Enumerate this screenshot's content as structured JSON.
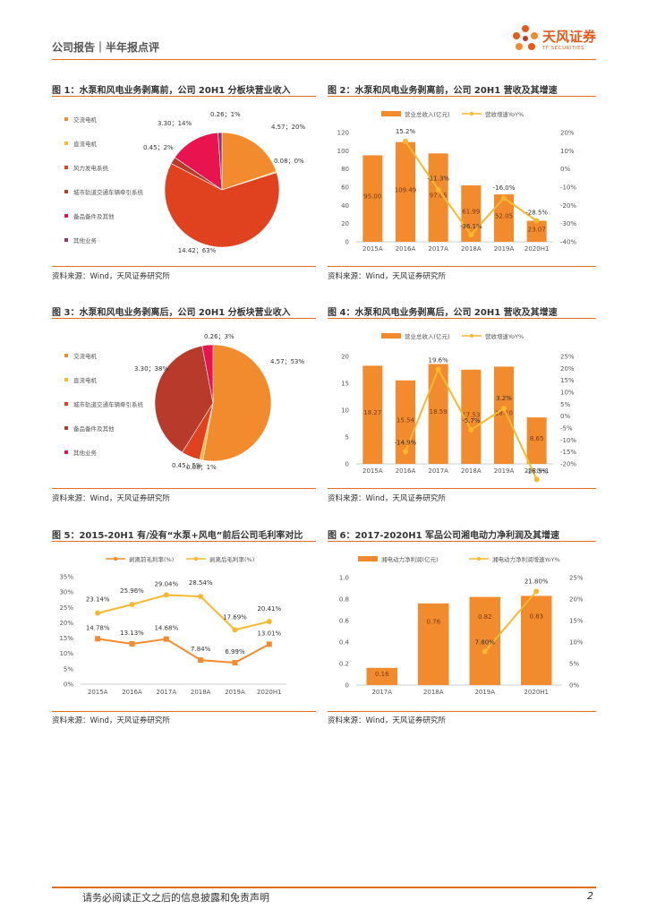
{
  "header": {
    "title": "公司报告｜半年报点评",
    "logo_name": "天风证券",
    "logo_sub": "TF SECURITIES"
  },
  "source_text": "资料来源：Wind，天风证券研究所",
  "footer": {
    "disclaimer": "请务必阅读正文之后的信息披露和免责声明",
    "page": "2"
  },
  "colors": {
    "orange": "#f28b2e",
    "yellow": "#f5b830",
    "red": "#e0421f",
    "crimson": "#e8134f",
    "brown": "#b83a2a",
    "purple": "#8a3a6a",
    "accent": "#e07020"
  },
  "figures": [
    {
      "title": "图 1：水泵和风电业务剥离前，公司 20H1 分板块营业收入"
    },
    {
      "title": "图 2：水泵和风电业务剥离前，公司 20H1 营收及其增速"
    },
    {
      "title": "图 3：水泵和风电业务剥离后，公司 20H1 分板块营业收入"
    },
    {
      "title": "图 4：水泵和风电业务剥离后，公司 20H1 营收及其增速"
    },
    {
      "title": "图 5：2015-20H1 有/没有“水泵+风电”前后公司毛利率对比"
    },
    {
      "title": "图 6：2017-2020H1 军品公司湘电动力净利润及其增速"
    }
  ],
  "chart_data": [
    {
      "type": "pie",
      "legend": [
        "交流电机",
        "直流电机",
        "风力发电系统",
        "城市轨道交通车辆牵引系统",
        "备品备件及其他",
        "其他业务"
      ],
      "values": [
        4.57,
        0.08,
        14.42,
        0.45,
        3.3,
        0.26
      ],
      "labels": [
        "4.57；20%",
        "0.08；0%",
        "14.42；63%",
        "0.45；2%",
        "3.30；14%",
        "0.26；1%"
      ],
      "colors": [
        "#f28b2e",
        "#f5b830",
        "#e0421f",
        "#b83a2a",
        "#e8134f",
        "#8a3a6a"
      ]
    },
    {
      "type": "bar+line",
      "categories": [
        "2015A",
        "2016A",
        "2017A",
        "2018A",
        "2019A",
        "2020H1"
      ],
      "series": [
        {
          "name": "营业总收入(亿元)",
          "values": [
            95.0,
            109.49,
            97.05,
            61.99,
            52.05,
            23.07
          ]
        },
        {
          "name": "营收增速YoY%",
          "values": [
            null,
            15.2,
            -11.3,
            -36.1,
            -16.0,
            -28.5
          ]
        }
      ],
      "bar_labels": [
        "95.00",
        "109.49",
        "97.05",
        "61.99",
        "52.05",
        "23.07"
      ],
      "line_labels": [
        "",
        "15.2%",
        "-11.3%",
        "-36.1%",
        "-16.0%",
        "-28.5%"
      ],
      "ylim": [
        0,
        120
      ],
      "yticks": [
        "0",
        "20",
        "40",
        "60",
        "80",
        "100",
        "120"
      ],
      "y2lim": [
        -40,
        20
      ],
      "y2ticks": [
        "-40%",
        "-30%",
        "-20%",
        "-10%",
        "0%",
        "10%",
        "20%"
      ]
    },
    {
      "type": "pie",
      "legend": [
        "交流电机",
        "直流电机",
        "城市轨道交通车辆牵引系统",
        "备品备件及其他",
        "其他业务"
      ],
      "values": [
        4.57,
        0.08,
        0.45,
        3.3,
        0.26
      ],
      "labels": [
        "4.57；53%",
        "0.08；1%",
        "0.45；5%",
        "3.30；38%",
        "0.26；3%"
      ],
      "colors": [
        "#f28b2e",
        "#f5b830",
        "#e0421f",
        "#b83a2a",
        "#e8134f"
      ]
    },
    {
      "type": "bar+line",
      "categories": [
        "2015A",
        "2016A",
        "2017A",
        "2018A",
        "2019A",
        "2020H1"
      ],
      "series": [
        {
          "name": "营业总收入(亿元)",
          "values": [
            18.27,
            15.54,
            18.59,
            17.53,
            18.1,
            8.65
          ]
        },
        {
          "name": "营收增速YoY%",
          "values": [
            null,
            -14.9,
            19.6,
            -5.7,
            3.2,
            -26.5
          ]
        }
      ],
      "bar_labels": [
        "18.27",
        "15.54",
        "18.59",
        "17.53",
        "18.10",
        "8.65"
      ],
      "line_labels": [
        "",
        "-14.9%",
        "19.6%",
        "-5.7%",
        "3.2%",
        "-26.5%"
      ],
      "ylim": [
        0,
        20
      ],
      "yticks": [
        "0",
        "5",
        "10",
        "15",
        "20"
      ],
      "y2lim": [
        -20,
        25
      ],
      "y2ticks": [
        "-20%",
        "-15%",
        "-10%",
        "-5%",
        "0%",
        "5%",
        "10%",
        "15%",
        "20%",
        "25%"
      ]
    },
    {
      "type": "line",
      "categories": [
        "2015A",
        "2016A",
        "2017A",
        "2018A",
        "2019A",
        "2020H1"
      ],
      "series": [
        {
          "name": "剥离前毛利率(%)",
          "values": [
            14.78,
            13.13,
            14.68,
            7.84,
            6.99,
            13.01
          ],
          "color": "#f28b2e"
        },
        {
          "name": "剥离后毛利率(%)",
          "values": [
            23.14,
            25.96,
            29.04,
            28.54,
            17.69,
            20.41
          ],
          "color": "#f5b830"
        }
      ],
      "labels_a": [
        "14.78%",
        "13.13%",
        "14.68%",
        "7.84%",
        "6.99%",
        "13.01%"
      ],
      "labels_b": [
        "23.14%",
        "25.96%",
        "29.04%",
        "28.54%",
        "17.69%",
        "20.41%"
      ],
      "ylim": [
        0,
        35
      ],
      "yticks": [
        "0%",
        "5%",
        "10%",
        "15%",
        "20%",
        "25%",
        "30%",
        "35%"
      ]
    },
    {
      "type": "bar+line",
      "categories": [
        "2017A",
        "2018A",
        "2019A",
        "2020H1"
      ],
      "series": [
        {
          "name": "湘电动力净利润(亿元)",
          "values": [
            0.16,
            0.76,
            0.82,
            0.83
          ]
        },
        {
          "name": "湘电动力净利润增速YoY%",
          "values": [
            null,
            null,
            7.8,
            21.8
          ]
        }
      ],
      "bar_labels": [
        "0.16",
        "0.76",
        "0.82",
        "0.83"
      ],
      "line_labels": [
        "",
        "",
        "7.80%",
        "21.80%"
      ],
      "ylim": [
        0,
        1.0
      ],
      "yticks": [
        "0",
        "0.2",
        "0.4",
        "0.6",
        "0.8",
        "1.0"
      ],
      "y2lim": [
        0,
        25
      ],
      "y2ticks": [
        "0%",
        "5%",
        "10%",
        "15%",
        "20%",
        "25%"
      ]
    }
  ]
}
